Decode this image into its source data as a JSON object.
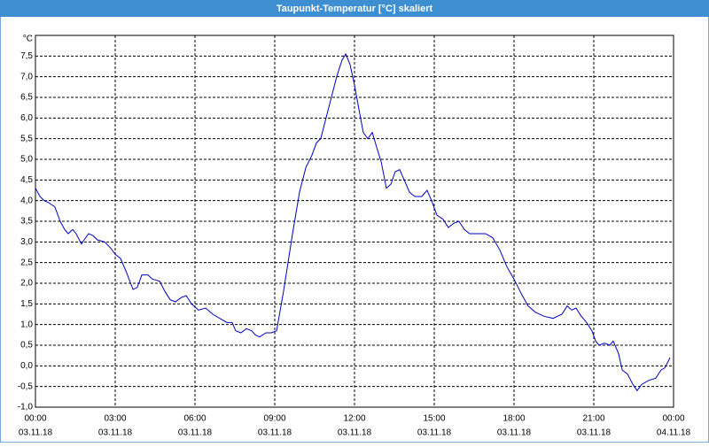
{
  "chart_data": {
    "type": "line",
    "title": "Taupunkt-Temperatur [°C] skaliert",
    "y_unit": "°C",
    "x": [
      0,
      0.17,
      0.33,
      0.5,
      0.73,
      0.93,
      1.1,
      1.23,
      1.4,
      1.53,
      1.73,
      1.83,
      2,
      2.17,
      2.33,
      2.6,
      2.83,
      3,
      3.2,
      3.4,
      3.67,
      3.83,
      4,
      4.23,
      4.4,
      4.67,
      4.87,
      5.07,
      5.27,
      5.47,
      5.67,
      5.87,
      6.13,
      6.4,
      6.67,
      6.93,
      7.2,
      7.4,
      7.53,
      7.73,
      7.93,
      8.13,
      8.27,
      8.43,
      8.67,
      8.87,
      9.07,
      9.33,
      9.67,
      9.93,
      10.17,
      10.4,
      10.57,
      10.73,
      10.93,
      11.13,
      11.33,
      11.53,
      11.67,
      11.83,
      12,
      12.17,
      12.33,
      12.5,
      12.67,
      12.83,
      13,
      13.2,
      13.37,
      13.53,
      13.7,
      13.87,
      14.07,
      14.27,
      14.53,
      14.73,
      14.9,
      15.1,
      15.33,
      15.53,
      15.73,
      15.93,
      16.13,
      16.33,
      16.67,
      16.93,
      17.2,
      17.47,
      17.73,
      18,
      18.27,
      18.53,
      18.8,
      19.13,
      19.47,
      19.8,
      20,
      20.17,
      20.33,
      20.53,
      20.73,
      20.93,
      21.07,
      21.2,
      21.4,
      21.6,
      21.73,
      21.93,
      22.07,
      22.27,
      22.47,
      22.63,
      22.8,
      23.07,
      23.33,
      23.53,
      23.67,
      23.87
    ],
    "series": [
      {
        "name": "Taupunkt-Temperatur",
        "color": "#0000c0",
        "values": [
          4.3,
          4.1,
          4.0,
          3.95,
          3.85,
          3.5,
          3.3,
          3.2,
          3.3,
          3.2,
          2.95,
          3.05,
          3.2,
          3.15,
          3.05,
          3.0,
          2.85,
          2.7,
          2.6,
          2.3,
          1.85,
          1.9,
          2.2,
          2.2,
          2.1,
          2.05,
          1.8,
          1.6,
          1.55,
          1.65,
          1.7,
          1.5,
          1.35,
          1.4,
          1.25,
          1.15,
          1.05,
          1.05,
          0.85,
          0.8,
          0.9,
          0.85,
          0.75,
          0.7,
          0.8,
          0.8,
          0.85,
          1.8,
          3.2,
          4.2,
          4.8,
          5.1,
          5.4,
          5.5,
          6.0,
          6.5,
          7.0,
          7.4,
          7.55,
          7.3,
          6.8,
          6.2,
          5.65,
          5.5,
          5.65,
          5.3,
          4.95,
          4.3,
          4.4,
          4.7,
          4.75,
          4.5,
          4.2,
          4.1,
          4.1,
          4.25,
          4.0,
          3.65,
          3.55,
          3.35,
          3.45,
          3.5,
          3.3,
          3.2,
          3.2,
          3.2,
          3.1,
          2.8,
          2.4,
          2.1,
          1.75,
          1.45,
          1.3,
          1.2,
          1.15,
          1.25,
          1.45,
          1.35,
          1.4,
          1.2,
          1.05,
          0.85,
          0.6,
          0.5,
          0.55,
          0.5,
          0.6,
          0.3,
          -0.1,
          -0.2,
          -0.45,
          -0.6,
          -0.45,
          -0.35,
          -0.3,
          -0.1,
          -0.05,
          0.2
        ]
      }
    ],
    "xlim": [
      0,
      24
    ],
    "xticks": [
      {
        "value": 0,
        "label": "00:00",
        "date": "03.11.18"
      },
      {
        "value": 3,
        "label": "03:00",
        "date": "03.11.18"
      },
      {
        "value": 6,
        "label": "06:00",
        "date": "03.11.18"
      },
      {
        "value": 9,
        "label": "09:00",
        "date": "03.11.18"
      },
      {
        "value": 12,
        "label": "12:00",
        "date": "03.11.18"
      },
      {
        "value": 15,
        "label": "15:00",
        "date": "03.11.18"
      },
      {
        "value": 18,
        "label": "18:00",
        "date": "03.11.18"
      },
      {
        "value": 21,
        "label": "21:00",
        "date": "03.11.18"
      },
      {
        "value": 24,
        "label": "00:00",
        "date": "04.11.18"
      }
    ],
    "ylim": [
      -1,
      8
    ],
    "yticks": [
      {
        "value": -1,
        "label": "-1,0"
      },
      {
        "value": -0.5,
        "label": "-0,5"
      },
      {
        "value": 0,
        "label": "0,0"
      },
      {
        "value": 0.5,
        "label": "0,5"
      },
      {
        "value": 1,
        "label": "1,0"
      },
      {
        "value": 1.5,
        "label": "1,5"
      },
      {
        "value": 2,
        "label": "2,0"
      },
      {
        "value": 2.5,
        "label": "2,5"
      },
      {
        "value": 3,
        "label": "3,0"
      },
      {
        "value": 3.5,
        "label": "3,5"
      },
      {
        "value": 4,
        "label": "4,0"
      },
      {
        "value": 4.5,
        "label": "4,5"
      },
      {
        "value": 5,
        "label": "5,0"
      },
      {
        "value": 5.5,
        "label": "5,5"
      },
      {
        "value": 6,
        "label": "6,0"
      },
      {
        "value": 6.5,
        "label": "6,5"
      },
      {
        "value": 7,
        "label": "7,0"
      },
      {
        "value": 7.5,
        "label": "7,5"
      }
    ],
    "grid": true
  }
}
